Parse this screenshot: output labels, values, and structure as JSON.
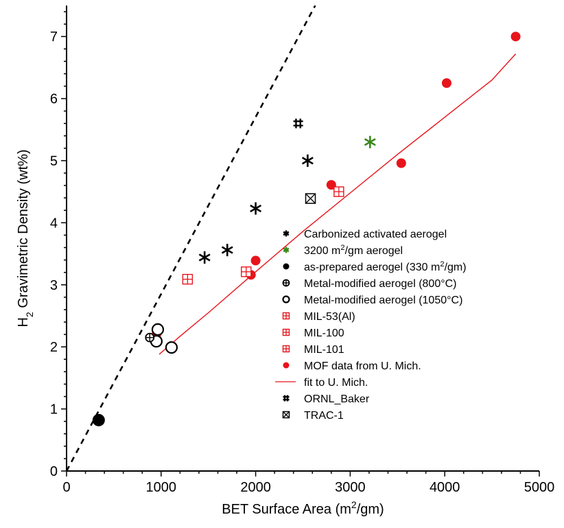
{
  "chart_data": {
    "type": "scatter",
    "title": "",
    "xlabel": {
      "main": "BET Surface Area (m",
      "sup": "2",
      "tail": "/gm)"
    },
    "ylabel": {
      "main": "H",
      "sub": "2",
      "tail": " Gravimetric Density (wt%)"
    },
    "xlim": [
      0,
      5000
    ],
    "ylim": [
      0,
      7.5
    ],
    "xticks": [
      0,
      1000,
      2000,
      3000,
      4000,
      5000
    ],
    "yticks": [
      0,
      1,
      2,
      3,
      4,
      5,
      6,
      7
    ],
    "grid": false,
    "legend_position": "lower-right",
    "series": [
      {
        "name": "Carbonized activated aerogel",
        "marker": "asterisk",
        "color": "#000000",
        "size": 9,
        "points": [
          [
            1460,
            3.44
          ],
          [
            1700,
            3.56
          ],
          [
            2000,
            4.23
          ],
          [
            2550,
            5.0
          ]
        ]
      },
      {
        "name": " 3200 m²/gm aerogel",
        "legend": {
          "main": " 3200 m",
          "sup": "2",
          "tail": "/gm aerogel"
        },
        "marker": "asterisk",
        "color": "#3a8a1a",
        "size": 9,
        "points": [
          [
            3210,
            5.3
          ]
        ]
      },
      {
        "name": "as-prepared aerogel (330 m²/gm)",
        "legend": {
          "main": "as-prepared aerogel (330 m",
          "sup": "2",
          "tail": "/gm)"
        },
        "marker": "filled-circle",
        "color": "#000000",
        "size": 9,
        "points": [
          [
            340,
            0.82
          ]
        ]
      },
      {
        "name": "Metal-modified aerogel (800°C)",
        "marker": "crossed-circle",
        "color": "#000000",
        "size": 6,
        "points": [
          [
            880,
            2.15
          ]
        ]
      },
      {
        "name": "Metal-modified aerogel (1050°C)",
        "marker": "open-circle",
        "color": "#000000",
        "size": 8,
        "points": [
          [
            965,
            2.28
          ],
          [
            950,
            2.09
          ],
          [
            1110,
            1.99
          ]
        ]
      },
      {
        "name": "MIL-53(Al)",
        "marker": "boxed-plus",
        "color": "#e8141b",
        "size": 7,
        "points": [
          [
            1280,
            3.09
          ]
        ]
      },
      {
        "name": "MIL-100",
        "marker": "boxed-plus",
        "color": "#e8141b",
        "size": 7,
        "points": [
          [
            1900,
            3.21
          ]
        ]
      },
      {
        "name": "MIL-101",
        "marker": "boxed-plus",
        "color": "#e8141b",
        "size": 7,
        "points": [
          [
            2880,
            4.5
          ]
        ]
      },
      {
        "name": "MOF data from U. Mich.",
        "marker": "red-dot",
        "color": "#e8141b",
        "size": 7,
        "points": [
          [
            950,
            2.2
          ],
          [
            1950,
            3.16
          ],
          [
            2000,
            3.39
          ],
          [
            2800,
            4.61
          ],
          [
            3540,
            4.96
          ],
          [
            4020,
            6.25
          ],
          [
            4750,
            7.0
          ]
        ]
      },
      {
        "name": "fit to U. Mich.",
        "marker": "line",
        "color": "#e8141b",
        "points": [
          [
            980,
            1.88
          ],
          [
            1200,
            2.17
          ],
          [
            1500,
            2.55
          ],
          [
            2000,
            3.21
          ],
          [
            2500,
            3.86
          ],
          [
            3000,
            4.48
          ],
          [
            3500,
            5.1
          ],
          [
            4000,
            5.7
          ],
          [
            4500,
            6.3
          ],
          [
            4750,
            6.72
          ]
        ]
      },
      {
        "name": "ORNL_Baker",
        "marker": "hash",
        "color": "#000000",
        "size": 7,
        "points": [
          [
            2450,
            5.6
          ]
        ]
      },
      {
        "name": "TRAC-1",
        "marker": "boxed-x",
        "color": "#000000",
        "size": 7,
        "points": [
          [
            2580,
            4.39
          ]
        ]
      }
    ],
    "reference_line": {
      "style": "dashed",
      "color": "#000000",
      "from": [
        0,
        0
      ],
      "to": [
        2630,
        7.5
      ]
    }
  }
}
